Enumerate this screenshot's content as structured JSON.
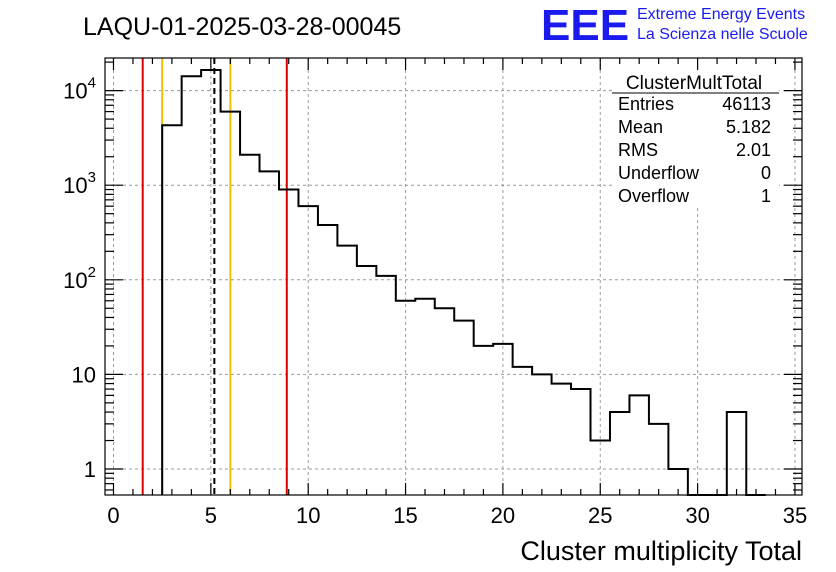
{
  "run_title": "LAQU-01-2025-03-28-00045",
  "logo": {
    "letters": "EEE",
    "line1": "Extreme Energy Events",
    "line2": "La Scienza nelle Scuole",
    "color": "#1a1aee"
  },
  "stats": {
    "name": "ClusterMultTotal",
    "rows": [
      {
        "label": "Entries",
        "value": "46113"
      },
      {
        "label": "Mean",
        "value": "5.182"
      },
      {
        "label": "RMS",
        "value": "2.01"
      },
      {
        "label": "Underflow",
        "value": "0"
      },
      {
        "label": "Overflow",
        "value": "1"
      }
    ]
  },
  "chart_data": {
    "type": "histogram",
    "title": "LAQU-01-2025-03-28-00045",
    "xlabel": "Cluster multiplicity Total",
    "ylabel": "",
    "yscale": "log",
    "xlim": [
      0,
      35
    ],
    "ylim": [
      0.5,
      28000
    ],
    "grid": true,
    "x_ticks": [
      "0",
      "5",
      "10",
      "15",
      "20",
      "25",
      "30",
      "35"
    ],
    "x_tick_values": [
      0,
      5,
      10,
      15,
      20,
      25,
      30,
      35
    ],
    "y_ticks": [
      "1",
      "10",
      "10^2",
      "10^3",
      "10^4"
    ],
    "y_tick_values": [
      1,
      10,
      100,
      1000,
      10000
    ],
    "bin_width": 1,
    "bins": [
      {
        "x0": 2.5,
        "count": 4300
      },
      {
        "x0": 3.5,
        "count": 14200
      },
      {
        "x0": 4.5,
        "count": 16500
      },
      {
        "x0": 5.5,
        "count": 6000
      },
      {
        "x0": 6.5,
        "count": 2100
      },
      {
        "x0": 7.5,
        "count": 1400
      },
      {
        "x0": 8.5,
        "count": 900
      },
      {
        "x0": 9.5,
        "count": 600
      },
      {
        "x0": 10.5,
        "count": 380
      },
      {
        "x0": 11.5,
        "count": 230
      },
      {
        "x0": 12.5,
        "count": 140
      },
      {
        "x0": 13.5,
        "count": 110
      },
      {
        "x0": 14.5,
        "count": 60
      },
      {
        "x0": 15.5,
        "count": 63
      },
      {
        "x0": 16.5,
        "count": 50
      },
      {
        "x0": 17.5,
        "count": 37
      },
      {
        "x0": 18.5,
        "count": 20
      },
      {
        "x0": 19.5,
        "count": 21
      },
      {
        "x0": 20.5,
        "count": 12
      },
      {
        "x0": 21.5,
        "count": 10
      },
      {
        "x0": 22.5,
        "count": 8
      },
      {
        "x0": 23.5,
        "count": 7
      },
      {
        "x0": 24.5,
        "count": 2
      },
      {
        "x0": 25.5,
        "count": 4
      },
      {
        "x0": 26.5,
        "count": 6
      },
      {
        "x0": 27.5,
        "count": 3
      },
      {
        "x0": 28.5,
        "count": 1
      },
      {
        "x0": 29.5,
        "count": 0
      },
      {
        "x0": 30.5,
        "count": 0
      },
      {
        "x0": 31.5,
        "count": 4
      },
      {
        "x0": 32.5,
        "count": 0
      }
    ],
    "markers": [
      {
        "name": "red-line-left",
        "x": 1.5,
        "color": "#dd0000",
        "style": "solid"
      },
      {
        "name": "yellow-line-left",
        "x": 2.5,
        "color": "#f2c200",
        "style": "solid"
      },
      {
        "name": "mean-line",
        "x": 5.18,
        "color": "#000000",
        "style": "dashed"
      },
      {
        "name": "yellow-line-right",
        "x": 6.0,
        "color": "#f2c200",
        "style": "solid"
      },
      {
        "name": "red-line-right",
        "x": 8.9,
        "color": "#dd0000",
        "style": "solid"
      }
    ]
  }
}
